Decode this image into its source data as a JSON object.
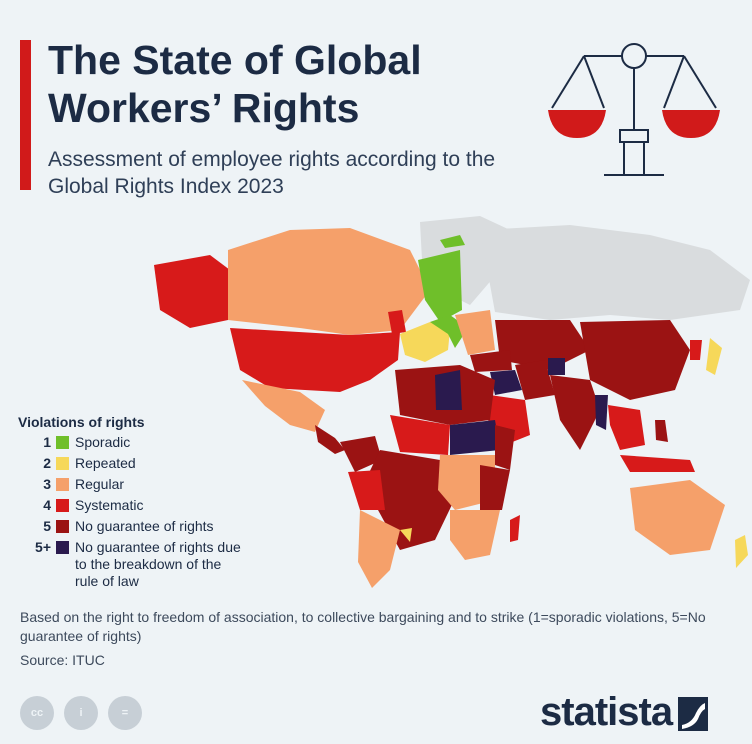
{
  "title": "The State of Global Workers’ Rights",
  "subtitle": "Assessment of employee rights according to the Global Rights Index 2023",
  "legend": {
    "title": "Violations of rights",
    "items": [
      {
        "num": "1",
        "label": "Sporadic",
        "color": "#6fbf2a"
      },
      {
        "num": "2",
        "label": "Repeated",
        "color": "#f6d85a"
      },
      {
        "num": "3",
        "label": "Regular",
        "color": "#f5a06a"
      },
      {
        "num": "4",
        "label": "Systematic",
        "color": "#d71a1a"
      },
      {
        "num": "5",
        "label": "No guarantee of rights",
        "color": "#9b1313"
      },
      {
        "num": "5+",
        "label": "No guarantee of rights due to the breakdown of the rule of law",
        "color": "#2a1a4e"
      }
    ]
  },
  "footnote": "Based on the right to freedom of association, to collective bargaining and to strike (1=sporadic violations, 5=No guarantee of rights)",
  "source": "Source: ITUC",
  "license_icons": [
    "cc",
    "i",
    "="
  ],
  "brand": "statista",
  "colors": {
    "accent": "#d11a1a",
    "navy": "#1c2b44",
    "no_data": "#d9dcde",
    "background": "#eef3f6"
  }
}
